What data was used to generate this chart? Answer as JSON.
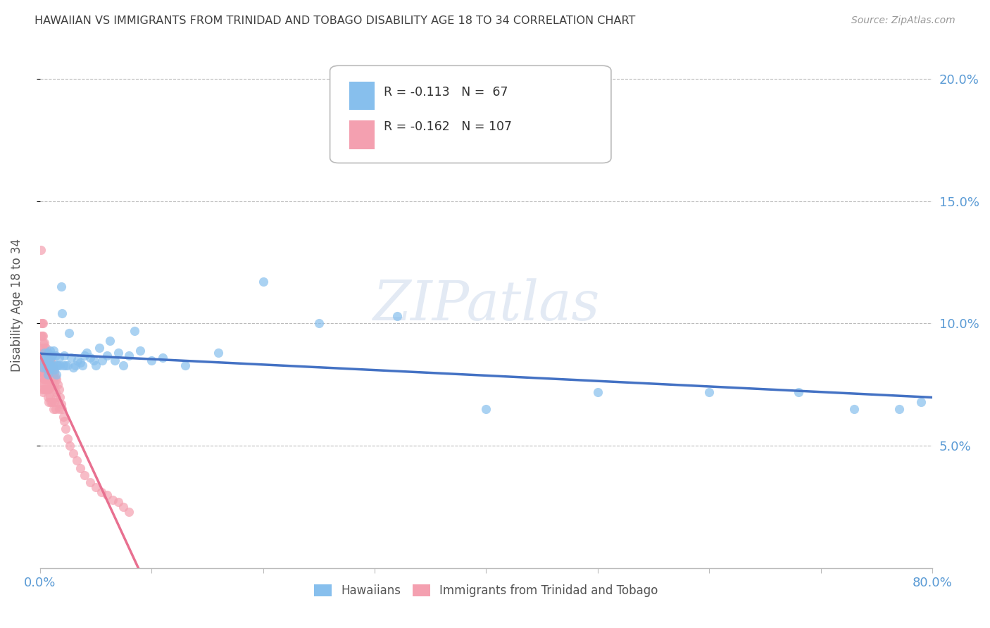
{
  "title": "HAWAIIAN VS IMMIGRANTS FROM TRINIDAD AND TOBAGO DISABILITY AGE 18 TO 34 CORRELATION CHART",
  "source": "Source: ZipAtlas.com",
  "ylabel": "Disability Age 18 to 34",
  "ytick_labels": [
    "5.0%",
    "10.0%",
    "15.0%",
    "20.0%"
  ],
  "ytick_values": [
    0.05,
    0.1,
    0.15,
    0.2
  ],
  "xlim": [
    0.0,
    0.8
  ],
  "ylim": [
    0.0,
    0.215
  ],
  "legend_hawaiians": "Hawaiians",
  "legend_immigrants": "Immigrants from Trinidad and Tobago",
  "R_hawaiians": "-0.113",
  "N_hawaiians": "67",
  "R_immigrants": "-0.162",
  "N_immigrants": "107",
  "color_hawaiians": "#87BFED",
  "color_immigrants": "#F4A0B0",
  "color_trendline_hawaiians": "#4472C4",
  "color_trendline_immigrants": "#E87090",
  "color_axis_labels": "#5B9BD5",
  "color_title": "#404040",
  "watermark": "ZIPatlas",
  "hawaiians_x": [
    0.002,
    0.003,
    0.004,
    0.005,
    0.005,
    0.006,
    0.007,
    0.007,
    0.008,
    0.008,
    0.009,
    0.009,
    0.01,
    0.01,
    0.01,
    0.011,
    0.012,
    0.013,
    0.013,
    0.014,
    0.015,
    0.015,
    0.016,
    0.017,
    0.018,
    0.019,
    0.02,
    0.021,
    0.022,
    0.023,
    0.025,
    0.026,
    0.028,
    0.03,
    0.032,
    0.034,
    0.036,
    0.038,
    0.04,
    0.042,
    0.045,
    0.048,
    0.05,
    0.053,
    0.056,
    0.06,
    0.063,
    0.067,
    0.07,
    0.075,
    0.08,
    0.085,
    0.09,
    0.1,
    0.11,
    0.13,
    0.16,
    0.2,
    0.25,
    0.32,
    0.4,
    0.5,
    0.6,
    0.68,
    0.73,
    0.77,
    0.79
  ],
  "hawaiians_y": [
    0.085,
    0.082,
    0.088,
    0.083,
    0.086,
    0.082,
    0.088,
    0.079,
    0.085,
    0.081,
    0.083,
    0.089,
    0.086,
    0.082,
    0.083,
    0.087,
    0.089,
    0.083,
    0.081,
    0.087,
    0.083,
    0.079,
    0.083,
    0.086,
    0.083,
    0.115,
    0.104,
    0.083,
    0.087,
    0.083,
    0.083,
    0.096,
    0.086,
    0.082,
    0.083,
    0.085,
    0.084,
    0.083,
    0.087,
    0.088,
    0.086,
    0.085,
    0.083,
    0.09,
    0.085,
    0.087,
    0.093,
    0.085,
    0.088,
    0.083,
    0.087,
    0.097,
    0.089,
    0.085,
    0.086,
    0.083,
    0.088,
    0.117,
    0.1,
    0.103,
    0.065,
    0.072,
    0.072,
    0.072,
    0.065,
    0.065,
    0.068
  ],
  "immigrants_x": [
    0.001,
    0.001,
    0.001,
    0.001,
    0.002,
    0.002,
    0.002,
    0.002,
    0.002,
    0.002,
    0.002,
    0.002,
    0.002,
    0.002,
    0.003,
    0.003,
    0.003,
    0.003,
    0.003,
    0.003,
    0.003,
    0.003,
    0.003,
    0.003,
    0.004,
    0.004,
    0.004,
    0.004,
    0.004,
    0.004,
    0.004,
    0.004,
    0.005,
    0.005,
    0.005,
    0.005,
    0.005,
    0.005,
    0.005,
    0.006,
    0.006,
    0.006,
    0.006,
    0.006,
    0.006,
    0.007,
    0.007,
    0.007,
    0.007,
    0.007,
    0.007,
    0.008,
    0.008,
    0.008,
    0.008,
    0.008,
    0.008,
    0.009,
    0.009,
    0.009,
    0.009,
    0.009,
    0.01,
    0.01,
    0.01,
    0.01,
    0.01,
    0.011,
    0.011,
    0.011,
    0.011,
    0.012,
    0.012,
    0.012,
    0.012,
    0.013,
    0.013,
    0.013,
    0.014,
    0.014,
    0.014,
    0.015,
    0.015,
    0.016,
    0.016,
    0.017,
    0.017,
    0.018,
    0.019,
    0.02,
    0.021,
    0.022,
    0.023,
    0.025,
    0.027,
    0.03,
    0.033,
    0.036,
    0.04,
    0.045,
    0.05,
    0.055,
    0.06,
    0.065,
    0.07,
    0.075,
    0.08
  ],
  "immigrants_y": [
    0.13,
    0.1,
    0.095,
    0.085,
    0.1,
    0.095,
    0.09,
    0.088,
    0.085,
    0.082,
    0.08,
    0.078,
    0.076,
    0.073,
    0.1,
    0.095,
    0.092,
    0.088,
    0.085,
    0.083,
    0.08,
    0.078,
    0.075,
    0.072,
    0.092,
    0.09,
    0.088,
    0.085,
    0.083,
    0.08,
    0.077,
    0.073,
    0.09,
    0.088,
    0.085,
    0.083,
    0.08,
    0.077,
    0.073,
    0.088,
    0.086,
    0.083,
    0.08,
    0.077,
    0.073,
    0.086,
    0.083,
    0.08,
    0.077,
    0.073,
    0.07,
    0.086,
    0.083,
    0.08,
    0.077,
    0.073,
    0.068,
    0.085,
    0.083,
    0.08,
    0.076,
    0.07,
    0.085,
    0.082,
    0.078,
    0.074,
    0.068,
    0.083,
    0.08,
    0.075,
    0.068,
    0.082,
    0.078,
    0.073,
    0.065,
    0.08,
    0.075,
    0.068,
    0.078,
    0.072,
    0.065,
    0.077,
    0.07,
    0.075,
    0.068,
    0.073,
    0.065,
    0.07,
    0.067,
    0.065,
    0.062,
    0.06,
    0.057,
    0.053,
    0.05,
    0.047,
    0.044,
    0.041,
    0.038,
    0.035,
    0.033,
    0.031,
    0.03,
    0.028,
    0.027,
    0.025,
    0.023
  ]
}
